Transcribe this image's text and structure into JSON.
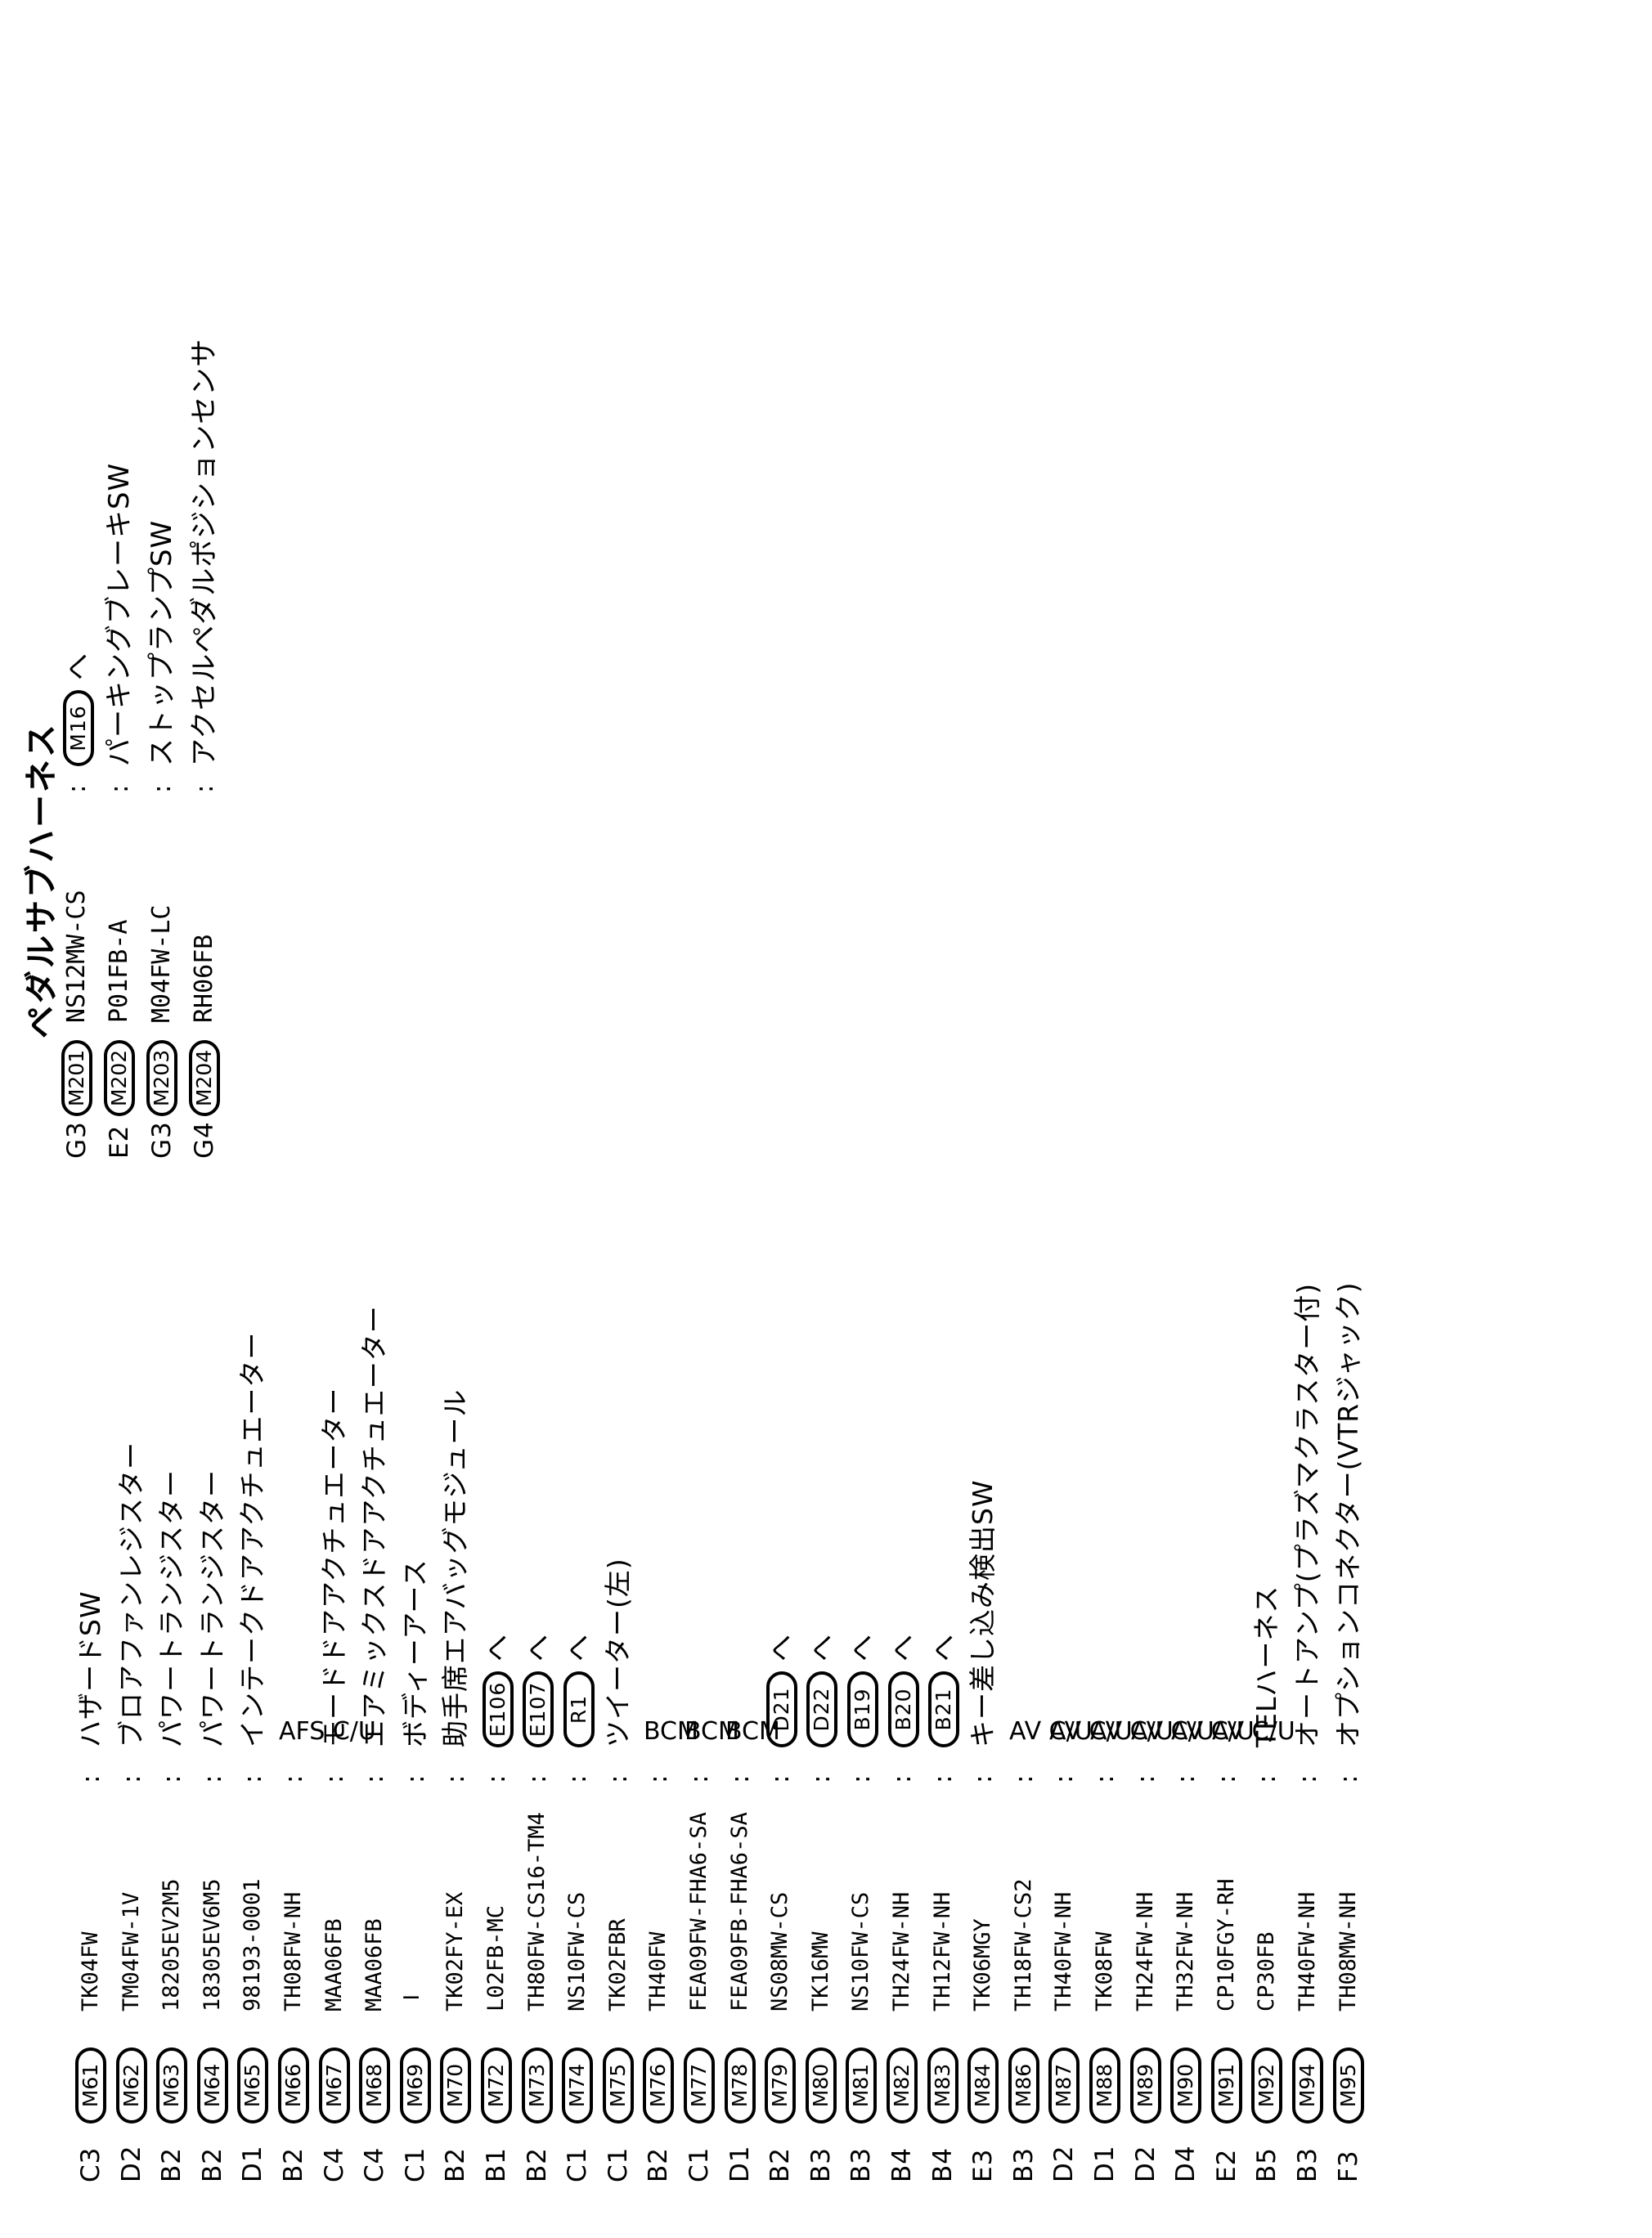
{
  "page": {
    "background": "#ffffff",
    "text_color": "#000000"
  },
  "shared": {
    "colon": ":",
    "link_suffix": "へ"
  },
  "main_list": {
    "rows": [
      {
        "grid": "C3",
        "id": "M61",
        "part": "TK04FW",
        "desc": "ハザードSW",
        "desc_style": "vertical"
      },
      {
        "grid": "D2",
        "id": "M62",
        "part": "TM04FW-1V",
        "desc": "ブロアファンレジスター",
        "desc_style": "vertical"
      },
      {
        "grid": "B2",
        "id": "M63",
        "part": "18205EV2M5",
        "desc": "パワートランジスター",
        "desc_style": "vertical"
      },
      {
        "grid": "B2",
        "id": "M64",
        "part": "18305EV6M5",
        "desc": "パワートランジスター",
        "desc_style": "vertical"
      },
      {
        "grid": "D1",
        "id": "M65",
        "part": "98193-0001",
        "desc": "インテークドアアクチュエーター",
        "desc_style": "vertical"
      },
      {
        "grid": "B2",
        "id": "M66",
        "part": "TH08FW-NH",
        "desc": "AFS C/U",
        "desc_style": "upright"
      },
      {
        "grid": "C4",
        "id": "M67",
        "part": "MAA06FB",
        "desc": "モードドアアクチュエーター",
        "desc_style": "vertical"
      },
      {
        "grid": "C4",
        "id": "M68",
        "part": "MAA06FB",
        "desc": "エアミックスドアアクチュエーター",
        "desc_style": "vertical"
      },
      {
        "grid": "C1",
        "id": "M69",
        "part": "−",
        "part_style": "upright",
        "desc": "ボディーアース",
        "desc_style": "vertical"
      },
      {
        "grid": "B2",
        "id": "M70",
        "part": "TK02FY-EX",
        "desc": "助手席エアバッグモジュール",
        "desc_style": "vertical"
      },
      {
        "grid": "B1",
        "id": "M72",
        "part": "L02FB-MC",
        "desc_oval": "E106",
        "desc": "へ",
        "desc_style": "oval-link"
      },
      {
        "grid": "B2",
        "id": "M73",
        "part": "TH80FW-CS16-TM4",
        "desc_oval": "E107",
        "desc": "へ",
        "desc_style": "oval-link"
      },
      {
        "grid": "C1",
        "id": "M74",
        "part": "NS10FW-CS",
        "desc_oval": "R1",
        "desc": "へ",
        "desc_style": "oval-link"
      },
      {
        "grid": "C1",
        "id": "M75",
        "part": "TK02FBR",
        "desc": "ツイーター(左)",
        "desc_style": "vertical"
      },
      {
        "grid": "B2",
        "id": "M76",
        "part": "TH40FW",
        "desc": "BCM",
        "desc_style": "upright"
      },
      {
        "grid": "C1",
        "id": "M77",
        "part": "FEA09FW-FHA6-SA",
        "desc": "BCM",
        "desc_style": "upright"
      },
      {
        "grid": "D1",
        "id": "M78",
        "part": "FEA09FB-FHA6-SA",
        "desc": "BCM",
        "desc_style": "upright"
      },
      {
        "grid": "B2",
        "id": "M79",
        "part": "NS08MW-CS",
        "desc_oval": "D21",
        "desc": "へ",
        "desc_style": "oval-link"
      },
      {
        "grid": "B3",
        "id": "M80",
        "part": "TK16MW",
        "desc_oval": "D22",
        "desc": "へ",
        "desc_style": "oval-link"
      },
      {
        "grid": "B3",
        "id": "M81",
        "part": "NS10FW-CS",
        "desc_oval": "B19",
        "desc": "へ",
        "desc_style": "oval-link"
      },
      {
        "grid": "B4",
        "id": "M82",
        "part": "TH24FW-NH",
        "desc_oval": "B20",
        "desc": "へ",
        "desc_style": "oval-link"
      },
      {
        "grid": "B4",
        "id": "M83",
        "part": "TH12FW-NH",
        "desc_oval": "B21",
        "desc": "へ",
        "desc_style": "oval-link"
      },
      {
        "grid": "E3",
        "id": "M84",
        "part": "TK06MGY",
        "desc": "キー差し込み検出SW",
        "desc_style": "vertical"
      },
      {
        "grid": "B3",
        "id": "M86",
        "part": "TH18FW-CS2",
        "desc": "AV C/U",
        "desc_style": "upright"
      },
      {
        "grid": "D2",
        "id": "M87",
        "part": "TH40FW-NH",
        "desc": "AV C/U",
        "desc_style": "upright"
      },
      {
        "grid": "D1",
        "id": "M88",
        "part": "TK08FW",
        "desc": "AV C/U",
        "desc_style": "upright"
      },
      {
        "grid": "D2",
        "id": "M89",
        "part": "TH24FW-NH",
        "desc": "AV C/U",
        "desc_style": "upright"
      },
      {
        "grid": "D4",
        "id": "M90",
        "part": "TH32FW-NH",
        "desc": "AV C/U",
        "desc_style": "upright"
      },
      {
        "grid": "E2",
        "id": "M91",
        "part": "CP10FGY-RH",
        "desc": "AV C/U",
        "desc_style": "upright"
      },
      {
        "grid": "B5",
        "id": "M92",
        "part": "CP30FB",
        "desc": "TELハーネス",
        "desc_style": "vertical"
      },
      {
        "grid": "B3",
        "id": "M94",
        "part": "TH40FW-NH",
        "desc": "オートアンプ(プラズマクラスター付)",
        "desc_style": "vertical"
      },
      {
        "grid": "F3",
        "id": "M95",
        "part": "TH08MW-NH",
        "desc": "オプションコネクター(VTRジャック)",
        "desc_style": "vertical"
      }
    ]
  },
  "pedal_section": {
    "title": "ペダルサブハーネス",
    "rows": [
      {
        "grid": "G3",
        "id": "M201",
        "part": "NS12MW-CS",
        "desc_oval": "M16",
        "desc": "へ",
        "desc_style": "oval-link"
      },
      {
        "grid": "E2",
        "id": "M202",
        "part": "P01FB-A",
        "desc": "パーキングブレーキSW",
        "desc_style": "vertical"
      },
      {
        "grid": "G3",
        "id": "M203",
        "part": "M04FW-LC",
        "desc": "ストップランプSW",
        "desc_style": "vertical"
      },
      {
        "grid": "G4",
        "id": "M204",
        "part": "RH06FB",
        "desc": "アクセルペダルポジションセンサ",
        "desc_style": "vertical"
      }
    ]
  }
}
